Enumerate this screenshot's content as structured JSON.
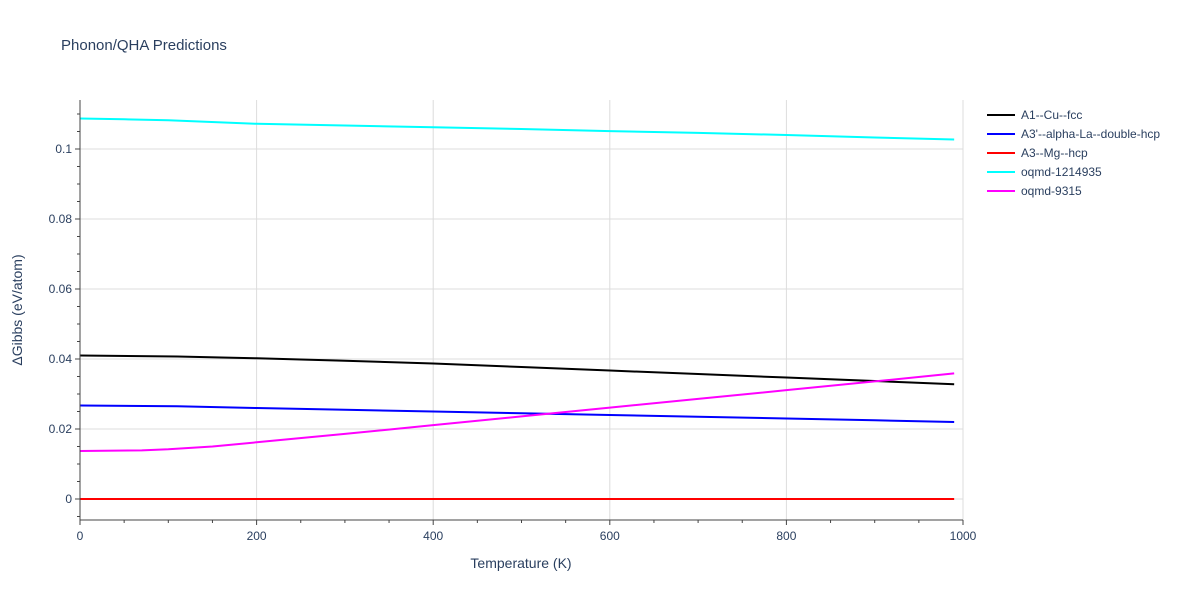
{
  "chart_data": {
    "type": "line",
    "title": "Phonon/QHA Predictions",
    "xlabel": "Temperature (K)",
    "ylabel": "ΔGibbs (eV/atom)",
    "xlim": [
      0,
      1000
    ],
    "ylim": [
      -0.006,
      0.114
    ],
    "xticks": [
      0,
      200,
      400,
      600,
      800,
      1000
    ],
    "xtick_labels": [
      "0",
      "200",
      "400",
      "600",
      "800",
      "1000"
    ],
    "yticks": [
      0,
      0.02,
      0.04,
      0.06,
      0.08,
      0.1
    ],
    "ytick_labels": [
      "0",
      "0.02",
      "0.04",
      "0.06",
      "0.08",
      "0.1"
    ],
    "grid": true,
    "legend_position": "top-right",
    "series": [
      {
        "name": "A1--Cu--fcc",
        "color": "#000000",
        "x": [
          0,
          110,
          200,
          300,
          400,
          500,
          600,
          700,
          800,
          900,
          990
        ],
        "y": [
          0.041,
          0.0407,
          0.0402,
          0.0395,
          0.0387,
          0.0377,
          0.0367,
          0.0357,
          0.0347,
          0.0337,
          0.0328
        ]
      },
      {
        "name": "A3'--alpha-La--double-hcp",
        "color": "#0000ff",
        "x": [
          0,
          110,
          200,
          300,
          400,
          500,
          600,
          700,
          800,
          900,
          990
        ],
        "y": [
          0.0267,
          0.0265,
          0.026,
          0.0255,
          0.025,
          0.0245,
          0.024,
          0.0235,
          0.023,
          0.0225,
          0.022
        ]
      },
      {
        "name": "A3--Mg--hcp",
        "color": "#ff0000",
        "x": [
          0,
          200,
          400,
          600,
          800,
          990
        ],
        "y": [
          0,
          0,
          0,
          0,
          0,
          0
        ]
      },
      {
        "name": "oqmd-1214935",
        "color": "#00ffff",
        "x": [
          0,
          50,
          100,
          200,
          300,
          400,
          500,
          600,
          700,
          800,
          900,
          990
        ],
        "y": [
          0.1087,
          0.1085,
          0.1082,
          0.1072,
          0.1067,
          0.1062,
          0.1057,
          0.1051,
          0.1046,
          0.104,
          0.1033,
          0.1027
        ]
      },
      {
        "name": "oqmd-9315",
        "color": "#ff00ff",
        "x": [
          0,
          70,
          100,
          150,
          200,
          300,
          400,
          500,
          600,
          700,
          800,
          900,
          990
        ],
        "y": [
          0.0137,
          0.0139,
          0.0142,
          0.015,
          0.0162,
          0.0186,
          0.0211,
          0.0236,
          0.0261,
          0.0286,
          0.0311,
          0.0336,
          0.0359
        ]
      }
    ]
  }
}
